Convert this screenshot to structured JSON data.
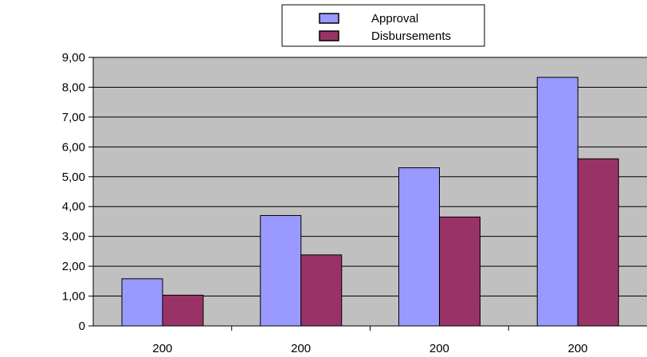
{
  "chart_data": {
    "type": "bar",
    "categories": [
      "200",
      "200",
      "200",
      "200"
    ],
    "series": [
      {
        "name": "Approval",
        "values": [
          1.58,
          3.7,
          5.3,
          8.33
        ],
        "color": "#9999ff"
      },
      {
        "name": "Disbursements",
        "values": [
          1.03,
          2.38,
          3.65,
          5.6
        ],
        "color": "#993366"
      }
    ],
    "y_tick_labels": [
      "0",
      "1,00",
      "2,00",
      "3,00",
      "4,00",
      "5,00",
      "6,00",
      "7,00",
      "8,00",
      "9,00"
    ],
    "ylim": [
      0,
      9
    ],
    "grid": true,
    "plot_background": "#c0c0c0",
    "legend": "top-center"
  }
}
